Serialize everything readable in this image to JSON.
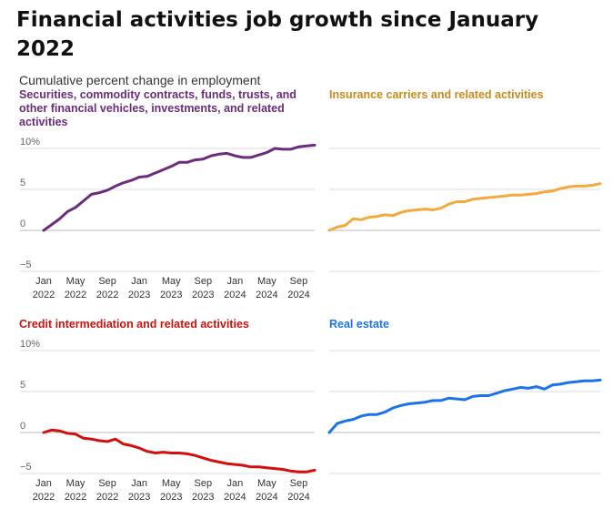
{
  "title": "Financial activities job growth since January 2022",
  "subtitle": "Cumulative percent change in employment",
  "chart_data": [
    {
      "type": "line",
      "title": "Securities, commodity contracts, funds, trusts, and other financial vehicles, investments, and related activities",
      "color": "#6b2c7e",
      "ylim": [
        -5,
        10
      ],
      "yticks": [
        "10%",
        "5",
        "0",
        "−5"
      ],
      "xticks": [
        [
          "Jan",
          "2022"
        ],
        [
          "May",
          "2022"
        ],
        [
          "Sep",
          "2022"
        ],
        [
          "Jan",
          "2023"
        ],
        [
          "May",
          "2023"
        ],
        [
          "Sep",
          "2023"
        ],
        [
          "Jan",
          "2024"
        ],
        [
          "May",
          "2024"
        ],
        [
          "Sep",
          "2024"
        ]
      ],
      "x": [
        "2022-01",
        "2022-02",
        "2022-03",
        "2022-04",
        "2022-05",
        "2022-06",
        "2022-07",
        "2022-08",
        "2022-09",
        "2022-10",
        "2022-11",
        "2022-12",
        "2023-01",
        "2023-02",
        "2023-03",
        "2023-04",
        "2023-05",
        "2023-06",
        "2023-07",
        "2023-08",
        "2023-09",
        "2023-10",
        "2023-11",
        "2023-12",
        "2024-01",
        "2024-02",
        "2024-03",
        "2024-04",
        "2024-05",
        "2024-06",
        "2024-07",
        "2024-08",
        "2024-09",
        "2024-10",
        "2024-11"
      ],
      "values": [
        0,
        0.7,
        1.4,
        2.3,
        2.8,
        3.6,
        4.4,
        4.6,
        4.9,
        5.4,
        5.8,
        6.1,
        6.5,
        6.6,
        7.0,
        7.4,
        7.8,
        8.3,
        8.3,
        8.6,
        8.7,
        9.1,
        9.3,
        9.4,
        9.1,
        8.9,
        8.9,
        9.2,
        9.5,
        10.0,
        9.9,
        9.9,
        10.2,
        10.3,
        10.4
      ]
    },
    {
      "type": "line",
      "title": "Insurance carriers and related activities",
      "color": "#f3a93c",
      "ylim": [
        -5,
        10
      ],
      "x": [
        "2022-01",
        "2022-02",
        "2022-03",
        "2022-04",
        "2022-05",
        "2022-06",
        "2022-07",
        "2022-08",
        "2022-09",
        "2022-10",
        "2022-11",
        "2022-12",
        "2023-01",
        "2023-02",
        "2023-03",
        "2023-04",
        "2023-05",
        "2023-06",
        "2023-07",
        "2023-08",
        "2023-09",
        "2023-10",
        "2023-11",
        "2023-12",
        "2024-01",
        "2024-02",
        "2024-03",
        "2024-04",
        "2024-05",
        "2024-06",
        "2024-07",
        "2024-08",
        "2024-09",
        "2024-10",
        "2024-11"
      ],
      "values": [
        0,
        0.4,
        0.6,
        1.4,
        1.3,
        1.6,
        1.7,
        1.9,
        1.8,
        2.2,
        2.4,
        2.5,
        2.6,
        2.5,
        2.7,
        3.2,
        3.5,
        3.5,
        3.8,
        3.9,
        4.0,
        4.1,
        4.2,
        4.3,
        4.3,
        4.4,
        4.5,
        4.7,
        4.8,
        5.1,
        5.3,
        5.4,
        5.4,
        5.5,
        5.7
      ]
    },
    {
      "type": "line",
      "title": "Credit intermediation and related activities",
      "color": "#d0100c",
      "ylim": [
        -5,
        10
      ],
      "yticks": [
        "10%",
        "5",
        "0",
        "−5"
      ],
      "xticks": [
        [
          "Jan",
          "2022"
        ],
        [
          "May",
          "2022"
        ],
        [
          "Sep",
          "2022"
        ],
        [
          "Jan",
          "2023"
        ],
        [
          "May",
          "2023"
        ],
        [
          "Sep",
          "2023"
        ],
        [
          "Jan",
          "2024"
        ],
        [
          "May",
          "2024"
        ],
        [
          "Sep",
          "2024"
        ]
      ],
      "x": [
        "2022-01",
        "2022-02",
        "2022-03",
        "2022-04",
        "2022-05",
        "2022-06",
        "2022-07",
        "2022-08",
        "2022-09",
        "2022-10",
        "2022-11",
        "2022-12",
        "2023-01",
        "2023-02",
        "2023-03",
        "2023-04",
        "2023-05",
        "2023-06",
        "2023-07",
        "2023-08",
        "2023-09",
        "2023-10",
        "2023-11",
        "2023-12",
        "2024-01",
        "2024-02",
        "2024-03",
        "2024-04",
        "2024-05",
        "2024-06",
        "2024-07",
        "2024-08",
        "2024-09",
        "2024-10",
        "2024-11"
      ],
      "values": [
        0,
        0.3,
        0.2,
        -0.1,
        -0.2,
        -0.7,
        -0.8,
        -1.0,
        -1.1,
        -0.8,
        -1.4,
        -1.6,
        -1.9,
        -2.3,
        -2.5,
        -2.4,
        -2.5,
        -2.5,
        -2.6,
        -2.8,
        -3.1,
        -3.4,
        -3.6,
        -3.8,
        -3.9,
        -4.0,
        -4.2,
        -4.2,
        -4.3,
        -4.4,
        -4.5,
        -4.7,
        -4.8,
        -4.8,
        -4.6
      ]
    },
    {
      "type": "line",
      "title": "Real estate",
      "color": "#1a73e8",
      "ylim": [
        -5,
        10
      ],
      "x": [
        "2022-01",
        "2022-02",
        "2022-03",
        "2022-04",
        "2022-05",
        "2022-06",
        "2022-07",
        "2022-08",
        "2022-09",
        "2022-10",
        "2022-11",
        "2022-12",
        "2023-01",
        "2023-02",
        "2023-03",
        "2023-04",
        "2023-05",
        "2023-06",
        "2023-07",
        "2023-08",
        "2023-09",
        "2023-10",
        "2023-11",
        "2023-12",
        "2024-01",
        "2024-02",
        "2024-03",
        "2024-04",
        "2024-05",
        "2024-06",
        "2024-07",
        "2024-08",
        "2024-09",
        "2024-10",
        "2024-11"
      ],
      "values": [
        0,
        1.1,
        1.4,
        1.6,
        2.0,
        2.2,
        2.2,
        2.5,
        3.0,
        3.3,
        3.5,
        3.6,
        3.7,
        3.9,
        3.9,
        4.2,
        4.1,
        4.0,
        4.4,
        4.5,
        4.5,
        4.8,
        5.1,
        5.3,
        5.5,
        5.4,
        5.6,
        5.3,
        5.8,
        5.9,
        6.1,
        6.2,
        6.3,
        6.3,
        6.4
      ]
    }
  ]
}
